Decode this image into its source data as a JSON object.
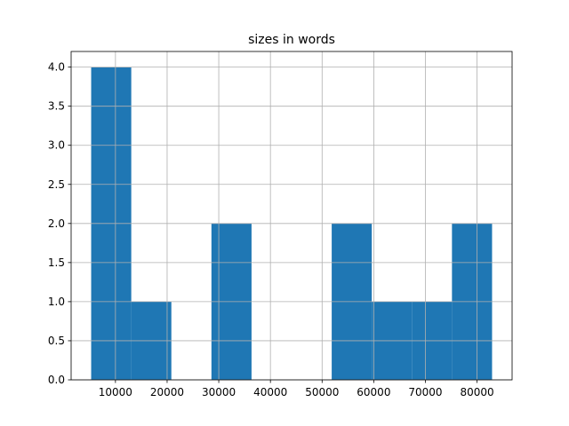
{
  "chart_data": {
    "type": "histogram",
    "title": "sizes in words",
    "bins": [
      5300,
      13060,
      20820,
      28580,
      36340,
      44100,
      51860,
      59620,
      67380,
      75140,
      82900
    ],
    "counts": [
      4,
      1,
      0,
      2,
      0,
      0,
      2,
      1,
      1,
      2
    ],
    "color": "#1f77b4",
    "xlim": [
      1420,
      86780
    ],
    "xticks": [
      10000,
      20000,
      30000,
      40000,
      50000,
      60000,
      70000,
      80000
    ],
    "ylim": [
      0,
      4.2
    ],
    "yticks": [
      {
        "value": 0,
        "label": "0.0"
      },
      {
        "value": 0.5,
        "label": "0.5"
      },
      {
        "value": 1,
        "label": "1.0"
      },
      {
        "value": 1.5,
        "label": "1.5"
      },
      {
        "value": 2,
        "label": "2.0"
      },
      {
        "value": 2.5,
        "label": "2.5"
      },
      {
        "value": 3,
        "label": "3.0"
      },
      {
        "value": 3.5,
        "label": "3.5"
      },
      {
        "value": 4,
        "label": "4.0"
      }
    ],
    "grid": true
  }
}
